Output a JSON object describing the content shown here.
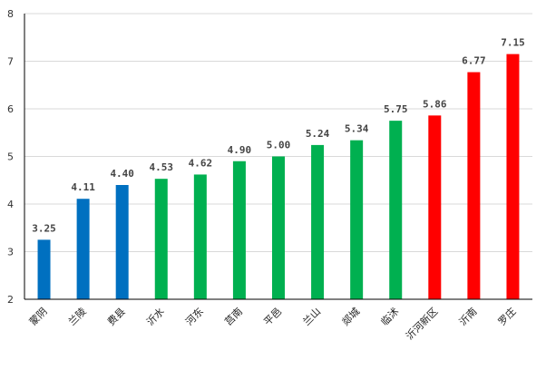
{
  "chart_data": {
    "type": "bar",
    "categories": [
      "蒙阴",
      "兰陵",
      "费县",
      "沂水",
      "河东",
      "莒南",
      "平邑",
      "兰山",
      "郯城",
      "临沭",
      "沂河新区",
      "沂南",
      "罗庄"
    ],
    "values": [
      3.25,
      4.11,
      4.4,
      4.53,
      4.62,
      4.9,
      5.0,
      5.24,
      5.34,
      5.75,
      5.86,
      6.77,
      7.15
    ],
    "value_labels": [
      "3.25",
      "4.11",
      "4.40",
      "4.53",
      "4.62",
      "4.90",
      "5.00",
      "5.24",
      "5.34",
      "5.75",
      "5.86",
      "6.77",
      "7.15"
    ],
    "bar_colors": [
      "#0070C0",
      "#0070C0",
      "#0070C0",
      "#00B050",
      "#00B050",
      "#00B050",
      "#00B050",
      "#00B050",
      "#00B050",
      "#00B050",
      "#FF0000",
      "#FF0000",
      "#FF0000"
    ],
    "ylim": [
      2,
      8
    ],
    "yticks": [
      2,
      3,
      4,
      5,
      6,
      7,
      8
    ],
    "title": "",
    "xlabel": "",
    "ylabel": "",
    "grid": true,
    "legend": "none",
    "gridline_color": "#D9D9D9",
    "axis_color": "#000000"
  }
}
